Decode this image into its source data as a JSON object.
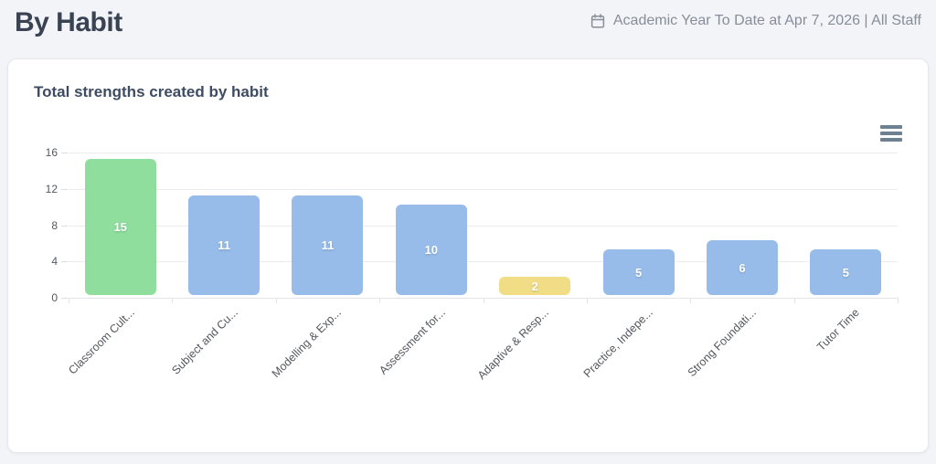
{
  "header": {
    "title": "By Habit",
    "period": "Academic Year To Date at Apr 7, 2026 | All Staff"
  },
  "card": {
    "chart_title": "Total strengths created by habit"
  },
  "icons": {
    "calendar": "calendar-icon",
    "chart_menu": "hamburger-menu-icon"
  },
  "colors": {
    "page_bg": "#f3f4f8",
    "card_bg": "#ffffff",
    "title_text": "#3a4354",
    "muted_text": "#878d99",
    "gridline": "#ececf0",
    "bar_green": "#8fde9e",
    "bar_blue": "#97bce9",
    "bar_yellow": "#f0dd86"
  },
  "chart_data": {
    "type": "bar",
    "title": "Total strengths created by habit",
    "categories": [
      "Classroom Cult...",
      "Subject and Cu...",
      "Modelling & Exp...",
      "Assessment for...",
      "Adaptive & Resp...",
      "Practice, Indepe...",
      "Strong Foundati...",
      "Tutor Time"
    ],
    "values": [
      15,
      11,
      11,
      10,
      2,
      5,
      6,
      5
    ],
    "bar_colors": [
      "#8fde9e",
      "#97bce9",
      "#97bce9",
      "#97bce9",
      "#f0dd86",
      "#97bce9",
      "#97bce9",
      "#97bce9"
    ],
    "data_labels": [
      "15",
      "11",
      "11",
      "10",
      "2",
      "5",
      "6",
      "5"
    ],
    "data_label_color": "#ffffff",
    "xlabel": "",
    "ylabel": "",
    "y_ticks": [
      0,
      4,
      8,
      12,
      16
    ],
    "ylim": [
      0,
      16
    ],
    "grid": true,
    "legend": "none"
  }
}
